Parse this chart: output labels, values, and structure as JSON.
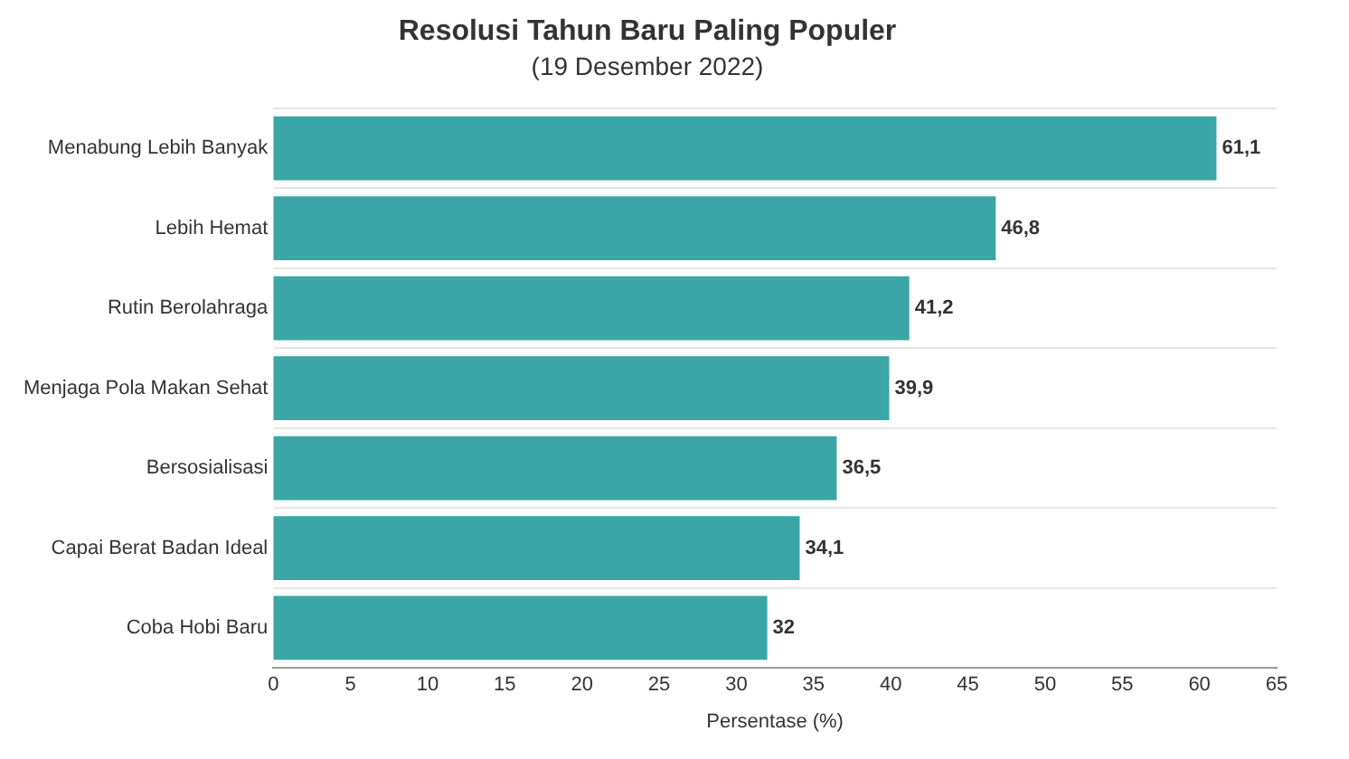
{
  "chart_data": {
    "type": "bar",
    "orientation": "horizontal",
    "title": "Resolusi Tahun Baru Paling Populer",
    "subtitle": "(19 Desember 2022)",
    "xlabel": "Persentase (%)",
    "categories": [
      "Menabung Lebih Banyak",
      "Lebih Hemat",
      "Rutin Berolahraga",
      "Menjaga Pola Makan Sehat",
      "Bersosialisasi",
      "Capai Berat Badan Ideal",
      "Coba Hobi Baru"
    ],
    "values": [
      61.1,
      46.8,
      41.2,
      39.9,
      36.5,
      34.1,
      32
    ],
    "value_labels": [
      "61,1",
      "46,8",
      "41,2",
      "39,9",
      "36,5",
      "34,1",
      "32"
    ],
    "color": "#3aa6a5",
    "xlim": [
      0,
      65
    ],
    "xticks": [
      0,
      5,
      10,
      15,
      20,
      25,
      30,
      35,
      40,
      45,
      50,
      55,
      60,
      65
    ],
    "grid": "y",
    "legend": false
  }
}
